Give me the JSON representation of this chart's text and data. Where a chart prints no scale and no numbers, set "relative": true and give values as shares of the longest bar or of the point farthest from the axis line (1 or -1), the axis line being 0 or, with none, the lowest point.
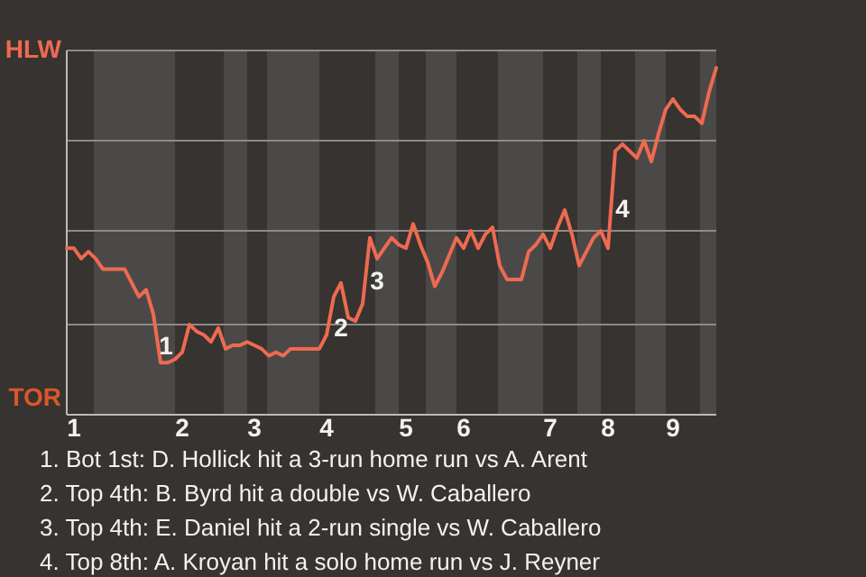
{
  "chart_data": {
    "type": "line",
    "relative": true,
    "categories": [
      null,
      "1",
      null,
      null,
      null,
      null,
      null,
      null,
      null,
      null,
      null,
      null,
      null,
      null,
      null,
      null,
      "2",
      null,
      null,
      null,
      null,
      null,
      null,
      null,
      null,
      null,
      "3",
      null,
      null,
      null,
      null,
      null,
      null,
      null,
      null,
      null,
      "4",
      null,
      null,
      null,
      null,
      null,
      null,
      null,
      null,
      null,
      null,
      "5",
      null,
      null,
      null,
      null,
      null,
      null,
      null,
      "6",
      null,
      null,
      null,
      null,
      null,
      null,
      null,
      null,
      null,
      null,
      null,
      "7",
      null,
      null,
      null,
      null,
      null,
      null,
      null,
      "8",
      null,
      null,
      null,
      null,
      null,
      null,
      null,
      null,
      "9",
      null,
      null,
      null,
      null,
      null,
      null
    ],
    "series": [
      {
        "color": "#ee6a50",
        "values": [
          0.48,
          0.48,
          0.45,
          0.47,
          0.45,
          0.42,
          0.42,
          0.42,
          0.42,
          0.38,
          0.34,
          0.36,
          0.29,
          0.15,
          0.15,
          0.16,
          0.18,
          0.26,
          0.24,
          0.23,
          0.21,
          0.25,
          0.19,
          0.2,
          0.2,
          0.21,
          0.2,
          0.19,
          0.17,
          0.18,
          0.17,
          0.19,
          0.19,
          0.19,
          0.19,
          0.19,
          0.23,
          0.34,
          0.38,
          0.28,
          0.27,
          0.32,
          0.51,
          0.45,
          0.48,
          0.51,
          0.49,
          0.48,
          0.55,
          0.49,
          0.44,
          0.37,
          0.41,
          0.46,
          0.51,
          0.48,
          0.53,
          0.48,
          0.52,
          0.54,
          0.43,
          0.39,
          0.39,
          0.39,
          0.47,
          0.49,
          0.52,
          0.48,
          0.54,
          0.59,
          0.52,
          0.43,
          0.47,
          0.51,
          0.53,
          0.48,
          0.76,
          0.78,
          0.76,
          0.74,
          0.79,
          0.73,
          0.81,
          0.88,
          0.91,
          0.88,
          0.86,
          0.86,
          0.84,
          0.93,
          1
        ]
      }
    ],
    "ref_lines": [
      {
        "axis": "y",
        "value": 0.26,
        "color": "#8d8a87"
      },
      {
        "axis": "y",
        "value": 0.53,
        "color": "#8d8a87"
      },
      {
        "axis": "y",
        "value": 0.79,
        "color": "#8d8a87"
      },
      {
        "axis": "y",
        "value": 1.05,
        "color": "#8d8a87"
      }
    ],
    "annotations": [
      "HLW",
      "TOR",
      "1",
      "2",
      "3",
      "4",
      "1. Bot 1st: D. Hollick hit a 3-run home run vs A. Arent",
      "2. Top 4th: B. Byrd hit a double vs W. Caballero",
      "3. Top 4th: E. Daniel hit a 2-run single vs W. Caballero",
      "4. Top 8th: A. Kroyan hit a solo home run vs J. Reyner"
    ]
  }
}
